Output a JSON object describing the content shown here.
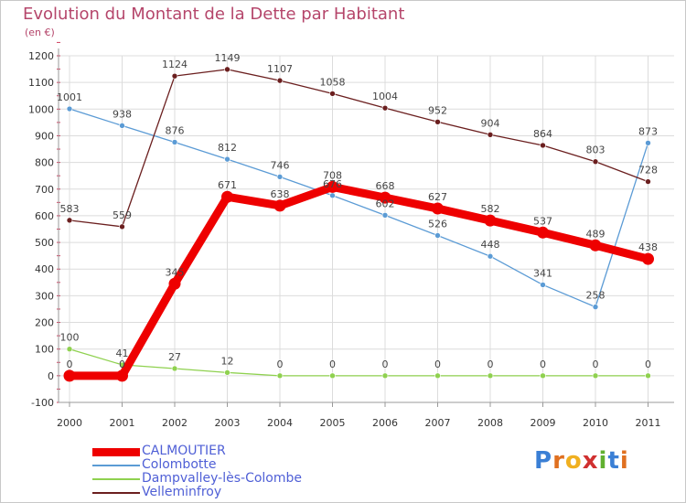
{
  "chart_data": {
    "type": "line",
    "title": "Evolution du Montant de la Dette par Habitant",
    "subtitle": "(en €)",
    "categories": [
      "2000",
      "2001",
      "2002",
      "2003",
      "2004",
      "2005",
      "2006",
      "2007",
      "2008",
      "2009",
      "2010",
      "2011"
    ],
    "y_ticks": [
      -100,
      0,
      100,
      200,
      300,
      400,
      500,
      600,
      700,
      800,
      900,
      1000,
      1100,
      1200
    ],
    "ylim": [
      -100,
      1200
    ],
    "grid": true,
    "legend_position": "bottom-left",
    "series": [
      {
        "name": "CALMOUTIER",
        "color": "#ee0000",
        "values": [
          0,
          0,
          345,
          671,
          638,
          708,
          668,
          627,
          582,
          537,
          489,
          438
        ],
        "emphasis": true
      },
      {
        "name": "Colombotte",
        "color": "#5b9bd5",
        "values": [
          1001,
          938,
          876,
          812,
          746,
          676,
          602,
          526,
          448,
          341,
          258,
          873
        ],
        "emphasis": false
      },
      {
        "name": "Dampvalley-lès-Colombe",
        "color": "#8fd14f",
        "values": [
          100,
          41,
          27,
          12,
          0,
          0,
          0,
          0,
          0,
          0,
          0,
          0
        ],
        "emphasis": false
      },
      {
        "name": "Velleminfroy",
        "color": "#6b1f1f",
        "values": [
          583,
          559,
          1124,
          1149,
          1107,
          1058,
          1004,
          952,
          904,
          864,
          803,
          728
        ],
        "emphasis": false
      }
    ]
  },
  "brand": {
    "letters": [
      "P",
      "r",
      "o",
      "x",
      "i",
      "t",
      "i"
    ],
    "colors": [
      "#3a7fd5",
      "#e07020",
      "#f0b020",
      "#d03030",
      "#60b030",
      "#3a7fd5",
      "#e07020"
    ]
  }
}
